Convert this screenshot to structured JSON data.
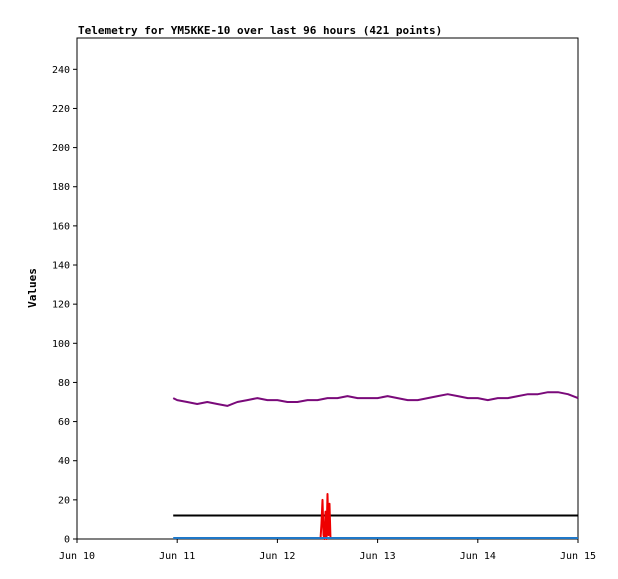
{
  "chart_data": {
    "type": "line",
    "title": "Telemetry for YM5KKE-10 over last 96 hours (421 points)",
    "xlabel": "",
    "ylabel": "Values",
    "x_ticks": [
      "Jun 10",
      "Jun 11",
      "Jun 12",
      "Jun 13",
      "Jun 14",
      "Jun 15"
    ],
    "xlim_days": [
      10,
      15
    ],
    "y_ticks": [
      0,
      20,
      40,
      60,
      80,
      100,
      120,
      140,
      160,
      180,
      200,
      220,
      240
    ],
    "ylim": [
      0,
      256
    ],
    "grid": false,
    "legend": "none",
    "series": [
      {
        "color": "#7a0a7a",
        "x": [
          10.96,
          11.0,
          11.1,
          11.2,
          11.3,
          11.4,
          11.5,
          11.6,
          11.7,
          11.8,
          11.9,
          12.0,
          12.1,
          12.2,
          12.3,
          12.4,
          12.5,
          12.6,
          12.7,
          12.8,
          12.9,
          13.0,
          13.1,
          13.2,
          13.3,
          13.4,
          13.5,
          13.6,
          13.7,
          13.8,
          13.9,
          14.0,
          14.1,
          14.2,
          14.3,
          14.4,
          14.5,
          14.6,
          14.7,
          14.8,
          14.9,
          15.0
        ],
        "y": [
          72,
          71,
          70,
          69,
          70,
          69,
          68,
          70,
          71,
          72,
          71,
          71,
          70,
          70,
          71,
          71,
          72,
          72,
          73,
          72,
          72,
          72,
          73,
          72,
          71,
          71,
          72,
          73,
          74,
          73,
          72,
          72,
          71,
          72,
          72,
          73,
          74,
          74,
          75,
          75,
          74,
          72
        ]
      },
      {
        "color": "#000000",
        "x": [
          10.96,
          15.0
        ],
        "y": [
          12,
          12
        ]
      },
      {
        "color": "#ee0000",
        "x": [
          12.43,
          12.44,
          12.45,
          12.46,
          12.47,
          12.48,
          12.49,
          12.5,
          12.51,
          12.52,
          12.53
        ],
        "y": [
          0,
          8,
          20,
          2,
          0,
          14,
          0,
          23,
          2,
          18,
          0
        ]
      },
      {
        "color": "#1f78c8",
        "x": [
          10.96,
          15.0
        ],
        "y": [
          0.5,
          0.5
        ]
      }
    ]
  }
}
